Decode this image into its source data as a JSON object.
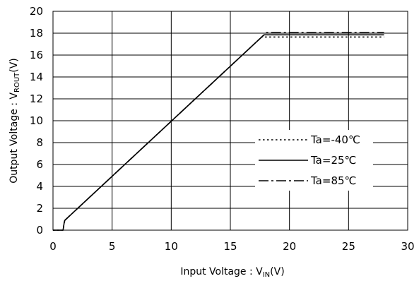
{
  "chart_data": {
    "type": "line",
    "xlabel": {
      "main": "Input Voltage : V",
      "sub": "IN",
      "unit": "(V)"
    },
    "ylabel": {
      "main": "Output Voltage : V",
      "sub": "ROUT",
      "unit": "(V)"
    },
    "xlim": [
      0,
      30
    ],
    "ylim": [
      0,
      20
    ],
    "xticks": [
      0,
      5,
      10,
      15,
      20,
      25,
      30
    ],
    "yticks": [
      0,
      2,
      4,
      6,
      8,
      10,
      12,
      14,
      16,
      18,
      20
    ],
    "grid": true,
    "legend_position": "right",
    "series": [
      {
        "name": "Ta=-40℃",
        "dash": "dotted",
        "x": [
          0,
          0.85,
          0.95,
          1.0,
          17.65,
          28
        ],
        "y": [
          0,
          0,
          0.7,
          0.9,
          17.65,
          17.65
        ]
      },
      {
        "name": "Ta=25℃",
        "dash": "solid",
        "x": [
          0,
          0.85,
          0.95,
          1.0,
          17.85,
          28
        ],
        "y": [
          0,
          0,
          0.7,
          0.9,
          17.85,
          17.85
        ]
      },
      {
        "name": "Ta=85℃",
        "dash": "dashdot",
        "x": [
          0,
          0.85,
          0.95,
          1.0,
          18.05,
          28
        ],
        "y": [
          0,
          0,
          0.7,
          0.9,
          18.05,
          18.05
        ]
      }
    ]
  }
}
